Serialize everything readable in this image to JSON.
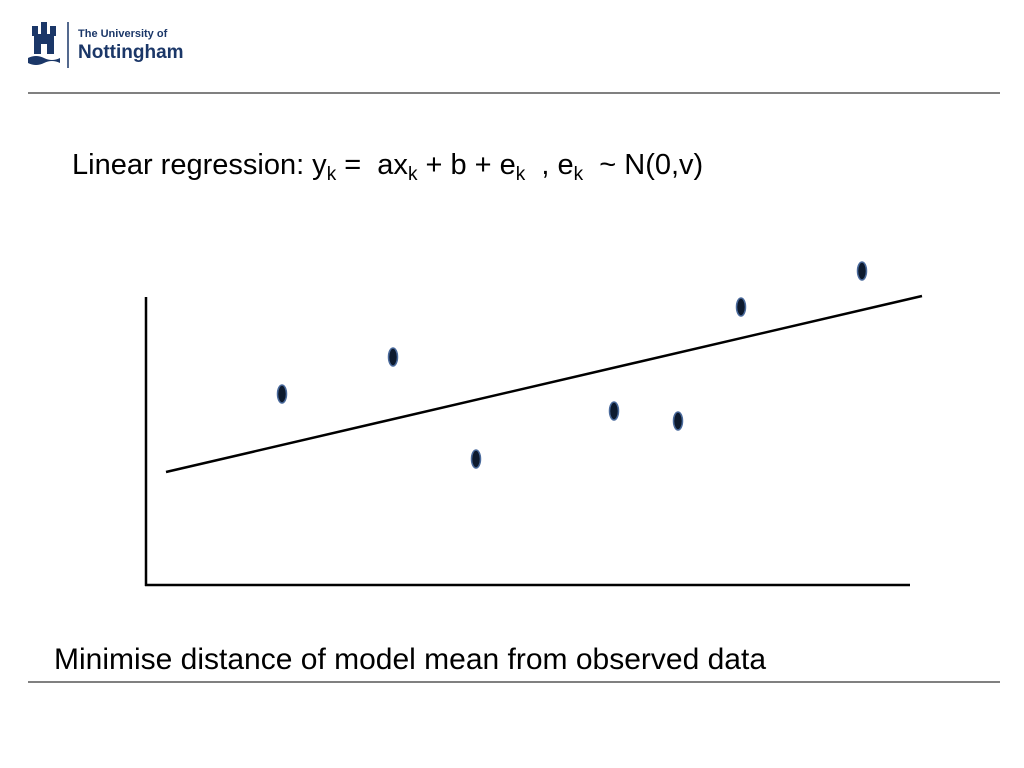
{
  "logo": {
    "line1": "The University of",
    "line2": "Nottingham"
  },
  "title": [
    "Linear regression: y",
    "k",
    " =  ax",
    "k",
    " + b + e",
    "k",
    "  , e",
    "k",
    "  ~ N(0,v)"
  ],
  "caption": "Minimise distance of model mean from observed data"
}
